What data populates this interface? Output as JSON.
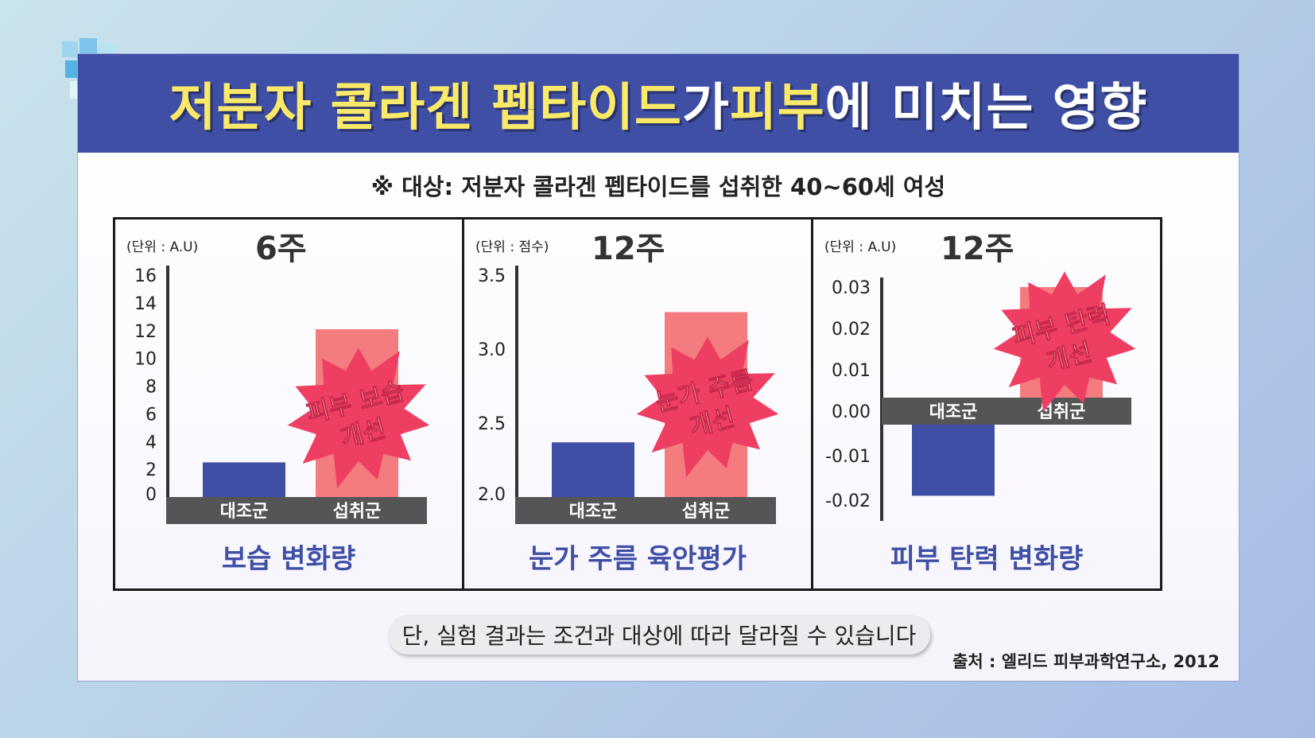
{
  "header": {
    "title_parts": [
      {
        "text": "저분자 콜라겐 펩타이드",
        "color": "#fbe96a"
      },
      {
        "text": "가 ",
        "color": "#ffffff"
      },
      {
        "text": "피부",
        "color": "#fbe96a"
      },
      {
        "text": "에 미치는 영향",
        "color": "#ffffff"
      }
    ]
  },
  "subtitle": "※ 대상: 저분자 콜라겐 펩타이드를 섭취한 40~60세 여성",
  "colors": {
    "control": "#3f4fa5",
    "treatment": "#f47b7e",
    "burst": "#ee3f63",
    "burst_text": "#fff3a6",
    "axis_band": "#555555",
    "caption": "#3f4fa5"
  },
  "chart_data": [
    {
      "type": "bar",
      "title": "6주",
      "unit": "(단위 : A.U)",
      "caption": "보습 변화량",
      "categories": [
        "대조군",
        "섭취군"
      ],
      "values": [
        2.5,
        12.1
      ],
      "ylim": [
        0,
        16
      ],
      "yticks": [
        0,
        2,
        4,
        6,
        8,
        10,
        12,
        14,
        16
      ],
      "ytick_labels": [
        "0",
        "2",
        "4",
        "6",
        "8",
        "10",
        "12",
        "14",
        "16"
      ],
      "badge": [
        "피부 보습",
        "개선"
      ]
    },
    {
      "type": "bar",
      "title": "12주",
      "unit": "(단위 : 점수)",
      "caption": "눈가 주름 육안평가",
      "categories": [
        "대조군",
        "섭취군"
      ],
      "values": [
        2.37,
        3.25
      ],
      "ylim": [
        2.0,
        3.5
      ],
      "yticks": [
        2.0,
        2.5,
        3.0,
        3.5
      ],
      "ytick_labels": [
        "2.0",
        "2.5",
        "3.0",
        "3.5"
      ],
      "badge": [
        "눈가 주름",
        "개선"
      ]
    },
    {
      "type": "bar",
      "title": "12주",
      "unit": "(단위 : A.U)",
      "caption": "피부 탄력 변화량",
      "categories": [
        "대조군",
        "섭취군"
      ],
      "values": [
        -0.019,
        0.03
      ],
      "ylim": [
        -0.02,
        0.03
      ],
      "yticks": [
        -0.02,
        -0.01,
        0.0,
        0.01,
        0.02,
        0.03
      ],
      "ytick_labels": [
        "-0.02",
        "-0.01",
        "0.00",
        "0.01",
        "0.02",
        "0.03"
      ],
      "badge": [
        "피부 탄력",
        "개선"
      ]
    }
  ],
  "footer": {
    "note": "단, 실험 결과는 조건과 대상에 따라 달라질 수 있습니다",
    "source": "출처 : 엘리드 피부과학연구소, 2012"
  }
}
